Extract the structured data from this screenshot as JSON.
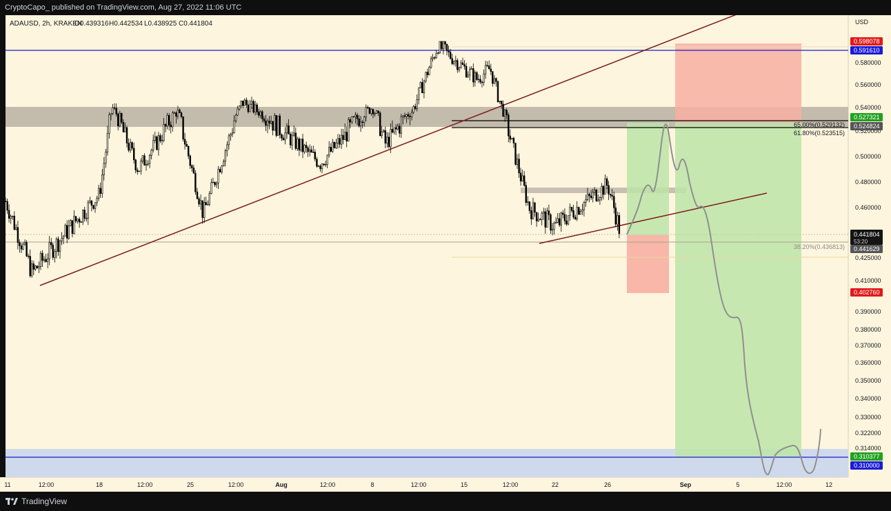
{
  "header": {
    "published_by": "CryptoCapo_ published on TradingView.com, Aug 27, 2022 11:06 UTC"
  },
  "legend": {
    "symbol": "ADAUSD, 2h, KRAKEN",
    "open": "O0.439316",
    "high": "H0.442534",
    "low": "L0.438925",
    "close": "C0.441804"
  },
  "footer": {
    "brand": "TradingView"
  },
  "colors": {
    "background": "#fdf5dd",
    "candles": "#000000",
    "trendline": "#7b1c1c",
    "horizontal_line": "#1c1cc8",
    "supply_zone": "#b8b0a2",
    "demand_zone": "#cfd9ec",
    "profit_zone": "#bde4a8",
    "loss_zone": "#f7b0a2",
    "projection": "#8f8f8f",
    "price_label_current": "#141414",
    "price_label_green": "#22a020",
    "price_label_red": "#e01a1a",
    "price_label_blue": "#1a1ad8",
    "price_label_gray": "#555555"
  },
  "chart_data": {
    "type": "candlestick",
    "symbol": "ADAUSD",
    "timeframe": "2h",
    "exchange": "KRAKEN",
    "currency_label": "USD",
    "y_ticks": [
      "0.580000",
      "0.560000",
      "0.540000",
      "0.520000",
      "0.500000",
      "0.480000",
      "0.460000",
      "0.425000",
      "0.410000",
      "0.390000",
      "0.380000",
      "0.370000",
      "0.360000",
      "0.350000",
      "0.340000",
      "0.330000",
      "0.322000",
      "0.314000"
    ],
    "x_ticks": [
      "11",
      "12:00",
      "18",
      "12:00",
      "25",
      "12:00",
      "Aug",
      "12:00",
      "8",
      "12:00",
      "15",
      "12:00",
      "22",
      "26",
      "Sep",
      "5",
      "12:00",
      "12"
    ],
    "price_labels": [
      {
        "text": "0.598078",
        "kind": "red",
        "value": 0.598078
      },
      {
        "text": "0.591610",
        "kind": "blue",
        "value": 0.59161
      },
      {
        "text": "0.527321",
        "kind": "green",
        "value": 0.527321
      },
      {
        "text": "0.524824",
        "kind": "gray",
        "value": 0.524824
      },
      {
        "text": "0.441804",
        "kind": "current",
        "value": 0.441804,
        "sub": "53:20"
      },
      {
        "text": "0.441629",
        "kind": "gray",
        "value": 0.441629
      },
      {
        "text": "0.402760",
        "kind": "red",
        "value": 0.40276
      },
      {
        "text": "0.310377",
        "kind": "green",
        "value": 0.310377
      },
      {
        "text": "0.310000",
        "kind": "blue",
        "value": 0.31
      }
    ],
    "fib_labels": [
      {
        "text": "65.00%(0.529132)",
        "value": 0.529132
      },
      {
        "text": "61.80%(0.523515)",
        "value": 0.523515
      },
      {
        "text": "38.20%(0.436813)",
        "value": 0.436813
      }
    ],
    "key_points": [
      {
        "date": "Jul 11",
        "price": 0.465
      },
      {
        "date": "Jul 13",
        "price": 0.415
      },
      {
        "date": "Jul 18",
        "price": 0.47
      },
      {
        "date": "Jul 19",
        "price": 0.54
      },
      {
        "date": "Jul 21",
        "price": 0.49
      },
      {
        "date": "Jul 24",
        "price": 0.535
      },
      {
        "date": "Jul 26",
        "price": 0.455
      },
      {
        "date": "Jul 29",
        "price": 0.545
      },
      {
        "date": "Aug 1",
        "price": 0.52
      },
      {
        "date": "Aug 4",
        "price": 0.495
      },
      {
        "date": "Aug 8",
        "price": 0.54
      },
      {
        "date": "Aug 9",
        "price": 0.51
      },
      {
        "date": "Aug 11",
        "price": 0.535
      },
      {
        "date": "Aug 13",
        "price": 0.596
      },
      {
        "date": "Aug 16",
        "price": 0.565
      },
      {
        "date": "Aug 17",
        "price": 0.575
      },
      {
        "date": "Aug 18",
        "price": 0.535
      },
      {
        "date": "Aug 20",
        "price": 0.46
      },
      {
        "date": "Aug 22",
        "price": 0.447
      },
      {
        "date": "Aug 25",
        "price": 0.47
      },
      {
        "date": "Aug 26",
        "price": 0.478
      },
      {
        "date": "Aug 27",
        "price": 0.441804
      }
    ]
  }
}
